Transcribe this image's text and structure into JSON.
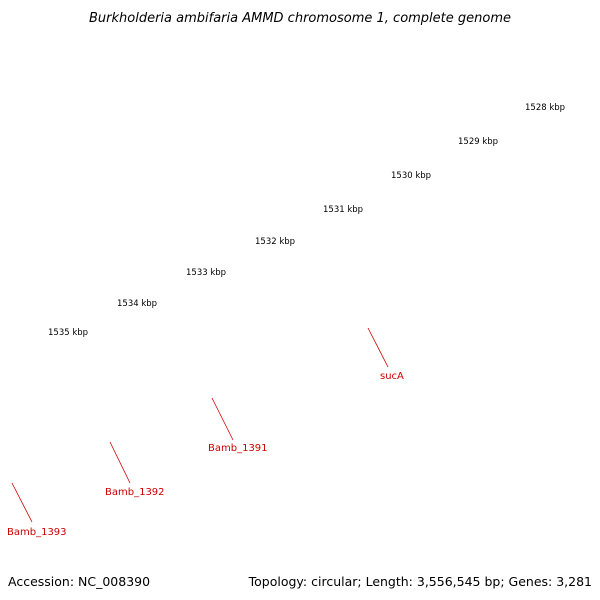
{
  "title": "Burkholderia ambifaria AMMD chromosome 1, complete genome",
  "footer": {
    "accession": "Accession: NC_008390",
    "summary": "Topology: circular; Length: 3,556,545 bp; Genes: 3,281"
  },
  "ruler": {
    "tick_labels": [
      "1528 kbp",
      "1529 kbp",
      "1530 kbp",
      "1531 kbp",
      "1532 kbp",
      "1533 kbp",
      "1534 kbp",
      "1535 kbp"
    ],
    "tick_color": "#1a7a1a"
  },
  "backbone_color": "#7a7a7a",
  "features": {
    "outer_track": [
      {
        "color": "#ff8c00"
      },
      {
        "color": "#ee1111"
      },
      {
        "color": "#ee1111"
      },
      {
        "color": "#ee1111"
      },
      {
        "color": "#ee1111"
      },
      {
        "color": "#ee1111"
      }
    ],
    "inner_track": [
      {
        "color": "#44bb33"
      },
      {
        "color": "#00e5ee"
      },
      {
        "color": "#00e5ee"
      },
      {
        "color": "#00e5ee"
      },
      {
        "color": "#c0c0c0"
      }
    ]
  },
  "gene_labels": [
    "sucA",
    "Bamb_1391",
    "Bamb_1392",
    "Bamb_1393"
  ],
  "label_color": "#cc0000"
}
